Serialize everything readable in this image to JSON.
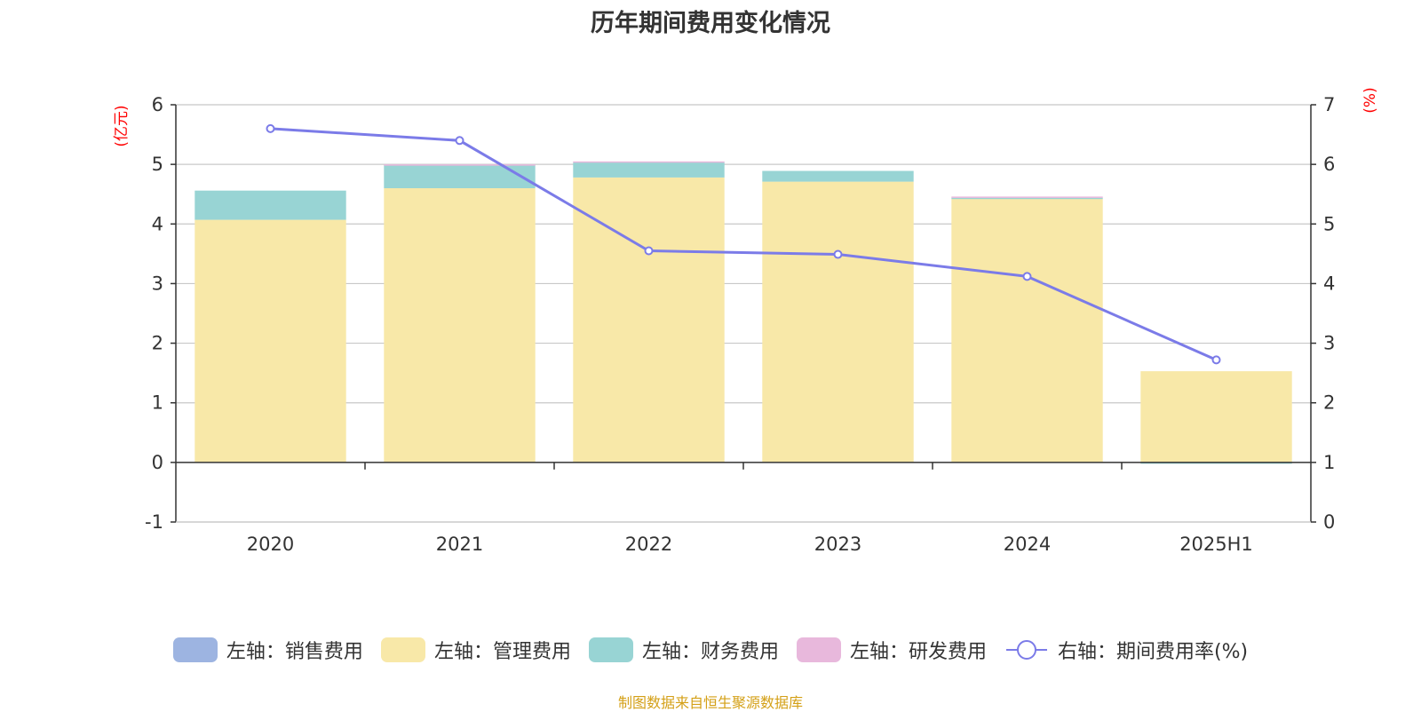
{
  "title": "历年期间费用变化情况",
  "source": "制图数据来自恒生聚源数据库",
  "legend": [
    {
      "label": "左轴：销售费用",
      "color": "#9db4e1",
      "kind": "bar"
    },
    {
      "label": "左轴：管理费用",
      "color": "#f8e8a8",
      "kind": "bar"
    },
    {
      "label": "左轴：财务费用",
      "color": "#98d4d4",
      "kind": "bar"
    },
    {
      "label": "左轴：研发费用",
      "color": "#e8b8dc",
      "kind": "bar"
    },
    {
      "label": "右轴：期间费用率(%)",
      "color": "#7b7be8",
      "kind": "line"
    }
  ],
  "chart_data": {
    "type": "bar",
    "stacked": true,
    "categories": [
      "2020",
      "2021",
      "2022",
      "2023",
      "2024",
      "2025H1"
    ],
    "series": [
      {
        "name": "左轴：销售费用",
        "axis": "left",
        "values": [
          0,
          0,
          0,
          0,
          0,
          0
        ]
      },
      {
        "name": "左轴：管理费用",
        "axis": "left",
        "values": [
          4.07,
          4.6,
          4.78,
          4.71,
          4.42,
          1.53
        ]
      },
      {
        "name": "左轴：财务费用",
        "axis": "left",
        "values": [
          0.49,
          0.39,
          0.26,
          0.18,
          0.02,
          -0.02
        ]
      },
      {
        "name": "左轴：研发费用",
        "axis": "left",
        "values": [
          0,
          0.01,
          0.01,
          0,
          0.02,
          0
        ]
      },
      {
        "name": "右轴：期间费用率(%)",
        "axis": "right",
        "type": "line",
        "values": [
          6.6,
          6.4,
          4.55,
          4.49,
          4.12,
          2.72
        ]
      }
    ],
    "y_left": {
      "unit": "(亿元)",
      "ticks": [
        6,
        5,
        4,
        3,
        2,
        1,
        0,
        -1
      ],
      "ylim": [
        -1,
        6
      ]
    },
    "y_right": {
      "unit": "(%)",
      "ticks": [
        7,
        6,
        5,
        4,
        3,
        2,
        1,
        0
      ],
      "ylim": [
        0,
        7
      ]
    },
    "grid": true,
    "legend_position": "bottom"
  }
}
